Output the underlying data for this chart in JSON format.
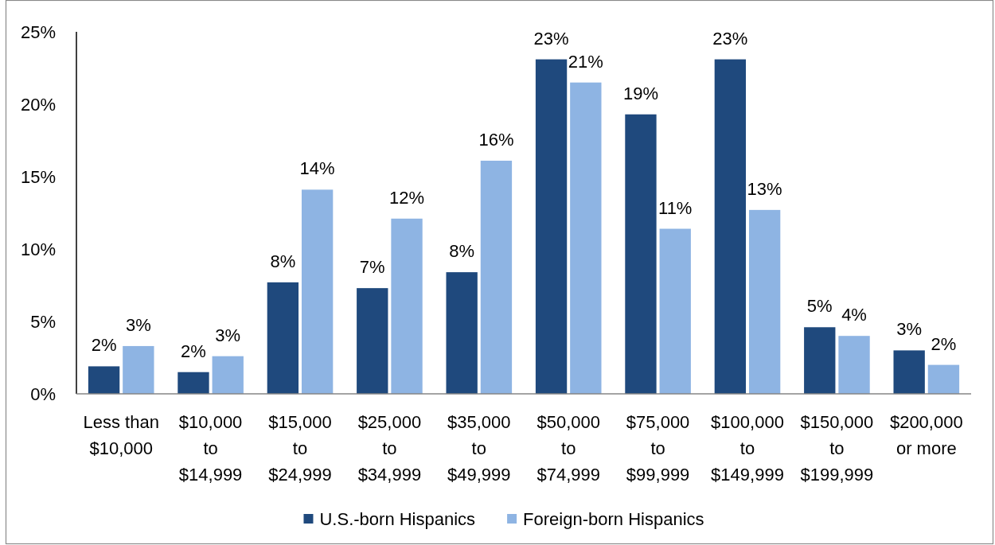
{
  "chart_data": {
    "type": "bar",
    "categories": [
      "Less than $10,000",
      "$10,000 to $14,999",
      "$15,000 to $24,999",
      "$25,000 to $34,999",
      "$35,000 to $49,999",
      "$50,000 to $74,999",
      "$75,000 to $99,999",
      "$100,000 to $149,999",
      "$150,000 to $199,999",
      "$200,000 or more"
    ],
    "series": [
      {
        "name": "U.S.-born Hispanics",
        "color": "#1f497d",
        "values": [
          1.9,
          1.5,
          7.7,
          7.3,
          8.4,
          23.1,
          19.3,
          23.1,
          4.6,
          3.0
        ],
        "value_labels": [
          "2%",
          "2%",
          "8%",
          "7%",
          "8%",
          "23%",
          "19%",
          "23%",
          "5%",
          "3%"
        ]
      },
      {
        "name": "Foreign-born Hispanics",
        "color": "#8eb4e3",
        "values": [
          3.3,
          2.6,
          14.1,
          12.1,
          16.1,
          21.5,
          11.4,
          12.7,
          4.0,
          2.0
        ],
        "value_labels": [
          "3%",
          "3%",
          "14%",
          "12%",
          "16%",
          "21%",
          "11%",
          "13%",
          "4%",
          "2%"
        ]
      }
    ],
    "ylim": [
      0,
      25
    ],
    "yticks": [
      {
        "value": 0,
        "label": "0%"
      },
      {
        "value": 5,
        "label": "5%"
      },
      {
        "value": 10,
        "label": "10%"
      },
      {
        "value": 15,
        "label": "15%"
      },
      {
        "value": 20,
        "label": "20%"
      },
      {
        "value": 25,
        "label": "25%"
      }
    ],
    "legend": "bottom"
  }
}
